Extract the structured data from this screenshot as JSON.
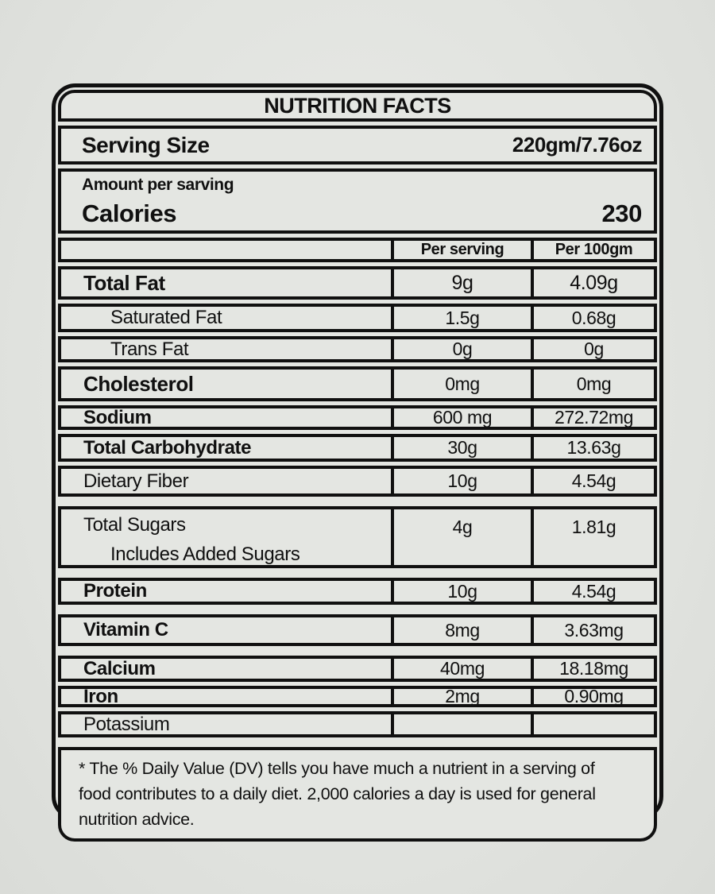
{
  "title": "NUTRITION FACTS",
  "serving": {
    "label": "Serving Size",
    "value": "220gm/7.76oz"
  },
  "calories": {
    "small_label": "Amount per sarving",
    "label": "Calories",
    "value": "230"
  },
  "table": {
    "headers": [
      "",
      "Per serving",
      "Per 100gm"
    ],
    "rows": [
      {
        "name": "Total Fat",
        "per_serving": "9g",
        "per_100gm": "4.09g"
      },
      {
        "name": "Saturated Fat",
        "per_serving": "1.5g",
        "per_100gm": "0.68g"
      },
      {
        "name": "Trans Fat",
        "per_serving": "0g",
        "per_100gm": "0g"
      },
      {
        "name": "Cholesterol",
        "per_serving": "0mg",
        "per_100gm": "0mg"
      },
      {
        "name": "Sodium",
        "per_serving": "600 mg",
        "per_100gm": "272.72mg"
      },
      {
        "name": "Total Carbohydrate",
        "per_serving": "30g",
        "per_100gm": "13.63g"
      },
      {
        "name": "Dietary Fiber",
        "per_serving": "10g",
        "per_100gm": "4.54g"
      },
      {
        "name": "Total Sugars",
        "sub_name": "Includes Added Sugars",
        "per_serving": "4g",
        "per_100gm": "1.81g"
      },
      {
        "name": "Protein",
        "per_serving": "10g",
        "per_100gm": "4.54g"
      },
      {
        "name": "Vitamin C",
        "per_serving": "8mg",
        "per_100gm": "3.63mg"
      },
      {
        "name": "Calcium",
        "per_serving": "40mg",
        "per_100gm": "18.18mg"
      },
      {
        "name": "Iron",
        "per_serving": "2mg",
        "per_100gm": "0.90mg"
      },
      {
        "name": "Potassium",
        "per_serving": "",
        "per_100gm": ""
      }
    ]
  },
  "footnote": "* The % Daily Value (DV) tells you have much a nutrient in a serving of food contributes to a daily diet. 2,000 calories a day is used for general nutrition advice.",
  "colors": {
    "ink": "#101010",
    "fill": "#e4e6e2",
    "page": "#e2e4e0"
  }
}
